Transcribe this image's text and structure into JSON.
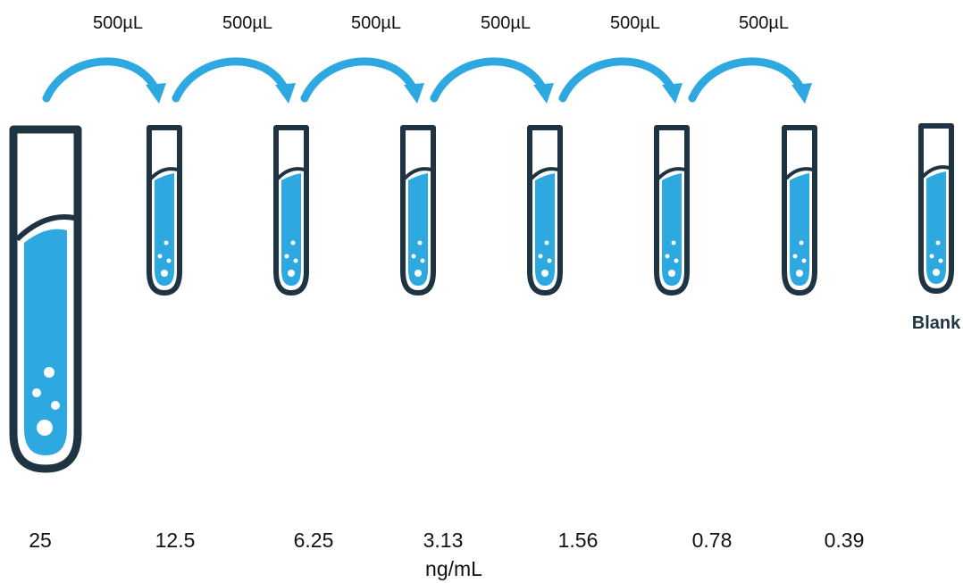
{
  "transfer_volumes": [
    "500µL",
    "500µL",
    "500µL",
    "500µL",
    "500µL",
    "500µL"
  ],
  "concentrations": [
    "25",
    "12.5",
    "6.25",
    "3.13",
    "1.56",
    "0.78",
    "0.39"
  ],
  "concentration_unit": "ng/mL",
  "blank_label": "Blank",
  "colors": {
    "tube_outline": "#1f3442",
    "liquid": "#2ea8e0",
    "arrow": "#2ea8e0",
    "bubble": "#ffffff"
  }
}
